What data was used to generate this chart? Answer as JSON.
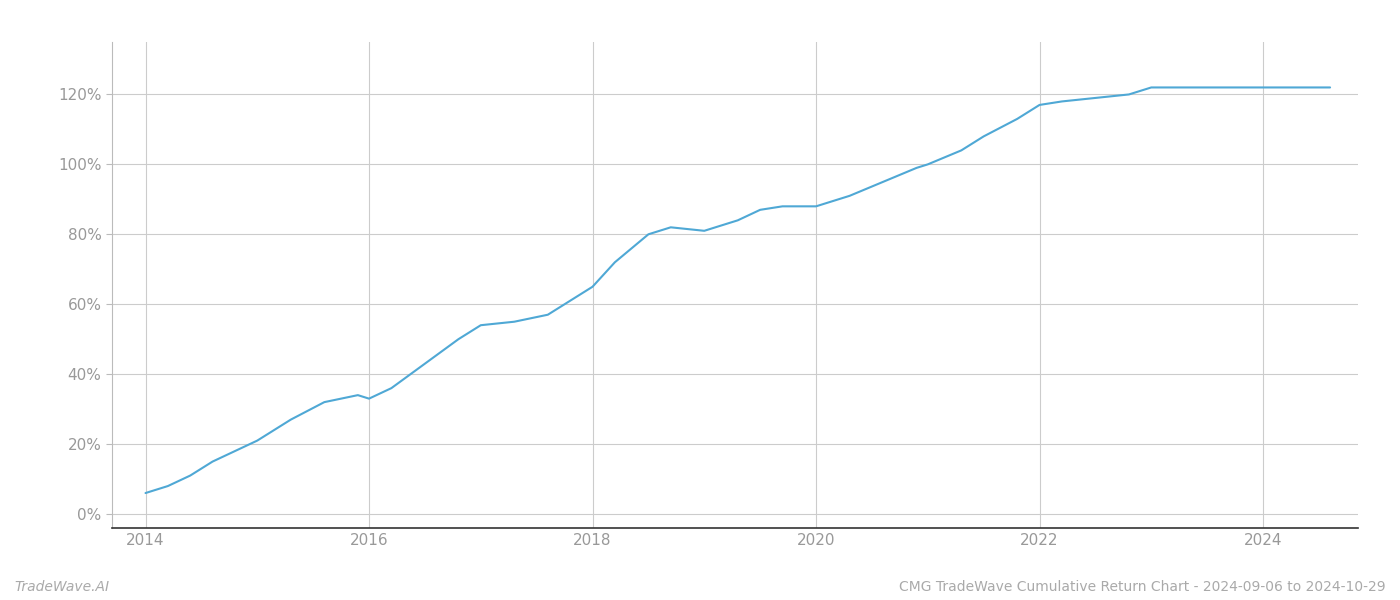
{
  "title": "CMG TradeWave Cumulative Return Chart - 2024-09-06 to 2024-10-29",
  "watermark": "TradeWave.AI",
  "line_color": "#4fa8d5",
  "background_color": "#ffffff",
  "grid_color": "#cccccc",
  "x_years": [
    2014.0,
    2014.2,
    2014.4,
    2014.6,
    2014.8,
    2015.0,
    2015.3,
    2015.6,
    2015.9,
    2016.0,
    2016.2,
    2016.5,
    2016.8,
    2017.0,
    2017.3,
    2017.6,
    2017.9,
    2018.0,
    2018.2,
    2018.5,
    2018.7,
    2019.0,
    2019.3,
    2019.5,
    2019.7,
    2020.0,
    2020.3,
    2020.6,
    2020.9,
    2021.0,
    2021.3,
    2021.5,
    2021.8,
    2022.0,
    2022.2,
    2022.5,
    2022.8,
    2023.0,
    2023.3,
    2023.6,
    2023.9,
    2024.0,
    2024.3,
    2024.6
  ],
  "y_values": [
    6,
    8,
    11,
    15,
    18,
    21,
    27,
    32,
    34,
    33,
    36,
    43,
    50,
    54,
    55,
    57,
    63,
    65,
    72,
    80,
    82,
    81,
    84,
    87,
    88,
    88,
    91,
    95,
    99,
    100,
    104,
    108,
    113,
    117,
    118,
    119,
    120,
    122,
    122,
    122,
    122,
    122,
    122,
    122
  ],
  "xlim": [
    2013.7,
    2024.85
  ],
  "ylim": [
    -4,
    135
  ],
  "yticks": [
    0,
    20,
    40,
    60,
    80,
    100,
    120
  ],
  "ytick_labels": [
    "0%",
    "20%",
    "40%",
    "60%",
    "80%",
    "100%",
    "120%"
  ],
  "xticks": [
    2014,
    2016,
    2018,
    2020,
    2022,
    2024
  ],
  "xtick_labels": [
    "2014",
    "2016",
    "2018",
    "2020",
    "2022",
    "2024"
  ],
  "title_fontsize": 10,
  "watermark_fontsize": 10,
  "tick_fontsize": 11,
  "line_width": 1.5
}
